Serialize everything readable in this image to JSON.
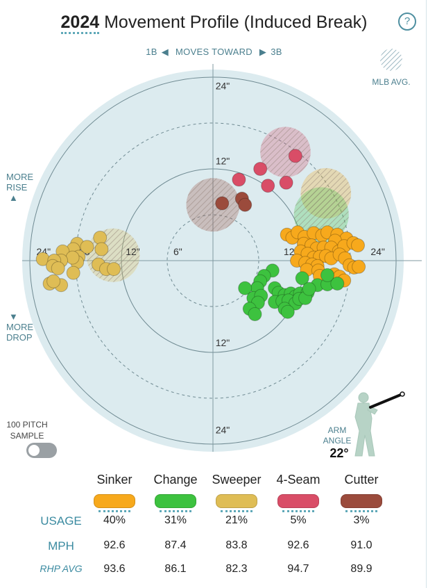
{
  "header": {
    "year": "2024",
    "title_rest": "Movement Profile (Induced Break)",
    "help": "?"
  },
  "direction": {
    "left": "1B",
    "middle": "MOVES TOWARD",
    "right": "3B"
  },
  "mlb_avg_label": "MLB AVG.",
  "side_labels": {
    "rise": [
      "MORE",
      "RISE"
    ],
    "drop": [
      "MORE",
      "DROP"
    ]
  },
  "sample": {
    "label_line1": "100 PITCH",
    "label_line2": "SAMPLE",
    "on": false
  },
  "arm_angle": {
    "label_line1": "ARM",
    "label_line2": "ANGLE",
    "value": "22°"
  },
  "colors": {
    "Sinker": "#f7a91c",
    "Change": "#3dc23f",
    "Sweeper": "#dfbd55",
    "4-Seam": "#d94d67",
    "Cutter": "#9b4b3c",
    "plot_bg": "#dcebef",
    "label": "#3a8aa0"
  },
  "table": {
    "row_labels": {
      "usage": "USAGE",
      "mph": "MPH",
      "rhp": "RHP AVG"
    },
    "pitches": [
      {
        "name": "Sinker",
        "usage": "40%",
        "mph": "92.6",
        "rhp_avg": "93.6"
      },
      {
        "name": "Change",
        "usage": "31%",
        "mph": "87.4",
        "rhp_avg": "86.1"
      },
      {
        "name": "Sweeper",
        "usage": "21%",
        "mph": "83.8",
        "rhp_avg": "82.3"
      },
      {
        "name": "4-Seam",
        "usage": "5%",
        "mph": "92.6",
        "rhp_avg": "94.7"
      },
      {
        "name": "Cutter",
        "usage": "3%",
        "mph": "91.0",
        "rhp_avg": "89.9"
      }
    ]
  },
  "chart_data": {
    "type": "scatter",
    "title": "2024 Movement Profile (Induced Break)",
    "units": "inches",
    "rings": [
      6,
      12,
      18,
      24
    ],
    "ring_labels": [
      "6\"",
      "12\"",
      "24\""
    ],
    "ring_labels_x": [
      "24\"",
      "18\"",
      "12\"",
      "6\"",
      "12\"",
      "24\""
    ],
    "ring_labels_y": [
      "24\"",
      "12\"",
      "12\"",
      "24\""
    ],
    "xlim": [
      -24,
      24
    ],
    "ylim": [
      -24,
      24
    ],
    "mlb_averages": [
      {
        "name": "4-Seam",
        "x": 9.5,
        "y": 14.2,
        "r": 3.3
      },
      {
        "name": "Cutter",
        "x": 0.0,
        "y": 7.3,
        "r": 3.5
      },
      {
        "name": "Sinker",
        "x": 14.8,
        "y": 8.8,
        "r": 3.3
      },
      {
        "name": "Change",
        "x": 14.2,
        "y": 6.0,
        "r": 3.6
      },
      {
        "name": "Sweeper",
        "x": -13.1,
        "y": 0.7,
        "r": 3.5
      }
    ],
    "series": [
      {
        "name": "Sinker",
        "points": [
          [
            9.7,
            3.4
          ],
          [
            10.4,
            3.0
          ],
          [
            11.1,
            3.7
          ],
          [
            12.0,
            3.1
          ],
          [
            13.2,
            3.6
          ],
          [
            14.3,
            3.3
          ],
          [
            15.0,
            3.7
          ],
          [
            16.3,
            3.4
          ],
          [
            17.5,
            2.9
          ],
          [
            16.0,
            2.6
          ],
          [
            11.9,
            2.2
          ],
          [
            12.9,
            2.0
          ],
          [
            13.6,
            1.6
          ],
          [
            14.5,
            1.7
          ],
          [
            15.5,
            1.7
          ],
          [
            16.5,
            1.2
          ],
          [
            17.2,
            1.9
          ],
          [
            18.4,
            2.3
          ],
          [
            19.0,
            2.0
          ],
          [
            11.5,
            1.2
          ],
          [
            12.4,
            0.9
          ],
          [
            13.2,
            0.4
          ],
          [
            14.0,
            0.5
          ],
          [
            14.8,
            0.6
          ],
          [
            15.5,
            0.3
          ],
          [
            16.6,
            0.8
          ],
          [
            17.3,
            0.3
          ],
          [
            11.0,
            0.0
          ],
          [
            12.1,
            -0.3
          ],
          [
            13.0,
            -0.5
          ],
          [
            13.7,
            -0.7
          ],
          [
            17.9,
            -0.6
          ],
          [
            18.5,
            -0.9
          ],
          [
            19.1,
            -0.8
          ],
          [
            12.3,
            -1.2
          ],
          [
            13.8,
            -1.3
          ],
          [
            15.9,
            -1.8
          ],
          [
            16.6,
            -2.1
          ],
          [
            17.2,
            -2.6
          ],
          [
            14.0,
            -2.0
          ]
        ]
      },
      {
        "name": "Change",
        "points": [
          [
            7.8,
            -1.3
          ],
          [
            6.7,
            -2.0
          ],
          [
            6.2,
            -2.7
          ],
          [
            5.8,
            -3.6
          ],
          [
            4.2,
            -3.6
          ],
          [
            5.3,
            -4.9
          ],
          [
            6.3,
            -4.6
          ],
          [
            5.9,
            -5.5
          ],
          [
            4.8,
            -6.3
          ],
          [
            5.5,
            -7.0
          ],
          [
            8.1,
            -3.6
          ],
          [
            8.6,
            -4.2
          ],
          [
            9.4,
            -4.5
          ],
          [
            10.2,
            -4.3
          ],
          [
            10.8,
            -4.7
          ],
          [
            11.4,
            -4.3
          ],
          [
            12.4,
            -4.2
          ],
          [
            13.7,
            -3.2
          ],
          [
            15.0,
            -3.1
          ],
          [
            16.3,
            -3.0
          ],
          [
            15.0,
            -1.9
          ],
          [
            11.7,
            -2.3
          ],
          [
            8.1,
            -5.4
          ],
          [
            9.1,
            -5.3
          ],
          [
            9.9,
            -5.2
          ],
          [
            10.8,
            -5.6
          ],
          [
            11.3,
            -5.0
          ],
          [
            12.1,
            -4.9
          ],
          [
            12.6,
            -3.7
          ],
          [
            9.4,
            -6.3
          ],
          [
            9.8,
            -6.7
          ]
        ]
      },
      {
        "name": "Sweeper",
        "points": [
          [
            -17.8,
            2.2
          ],
          [
            -18.3,
            1.5
          ],
          [
            -19.7,
            1.2
          ],
          [
            -14.8,
            3.0
          ],
          [
            -14.6,
            1.5
          ],
          [
            -16.5,
            1.8
          ],
          [
            -17.6,
            0.5
          ],
          [
            -17.8,
            -0.2
          ],
          [
            -18.4,
            0.4
          ],
          [
            -19.9,
            0.0
          ],
          [
            -22.3,
            0.2
          ],
          [
            -20.8,
            0.0
          ],
          [
            -21.0,
            -0.7
          ],
          [
            -20.3,
            -1.0
          ],
          [
            -15.0,
            -0.5
          ],
          [
            -14.0,
            -1.1
          ],
          [
            -13.0,
            -1.1
          ],
          [
            -21.4,
            -3.0
          ],
          [
            -19.9,
            -3.2
          ],
          [
            -20.9,
            -2.7
          ],
          [
            -18.3,
            -1.6
          ]
        ]
      },
      {
        "name": "4-Seam",
        "points": [
          [
            10.8,
            13.7
          ],
          [
            6.2,
            12.0
          ],
          [
            7.2,
            9.8
          ],
          [
            9.6,
            10.2
          ],
          [
            3.4,
            10.6
          ]
        ]
      },
      {
        "name": "Cutter",
        "points": [
          [
            3.8,
            8.1
          ],
          [
            4.2,
            7.3
          ],
          [
            1.2,
            7.5
          ]
        ]
      }
    ]
  }
}
